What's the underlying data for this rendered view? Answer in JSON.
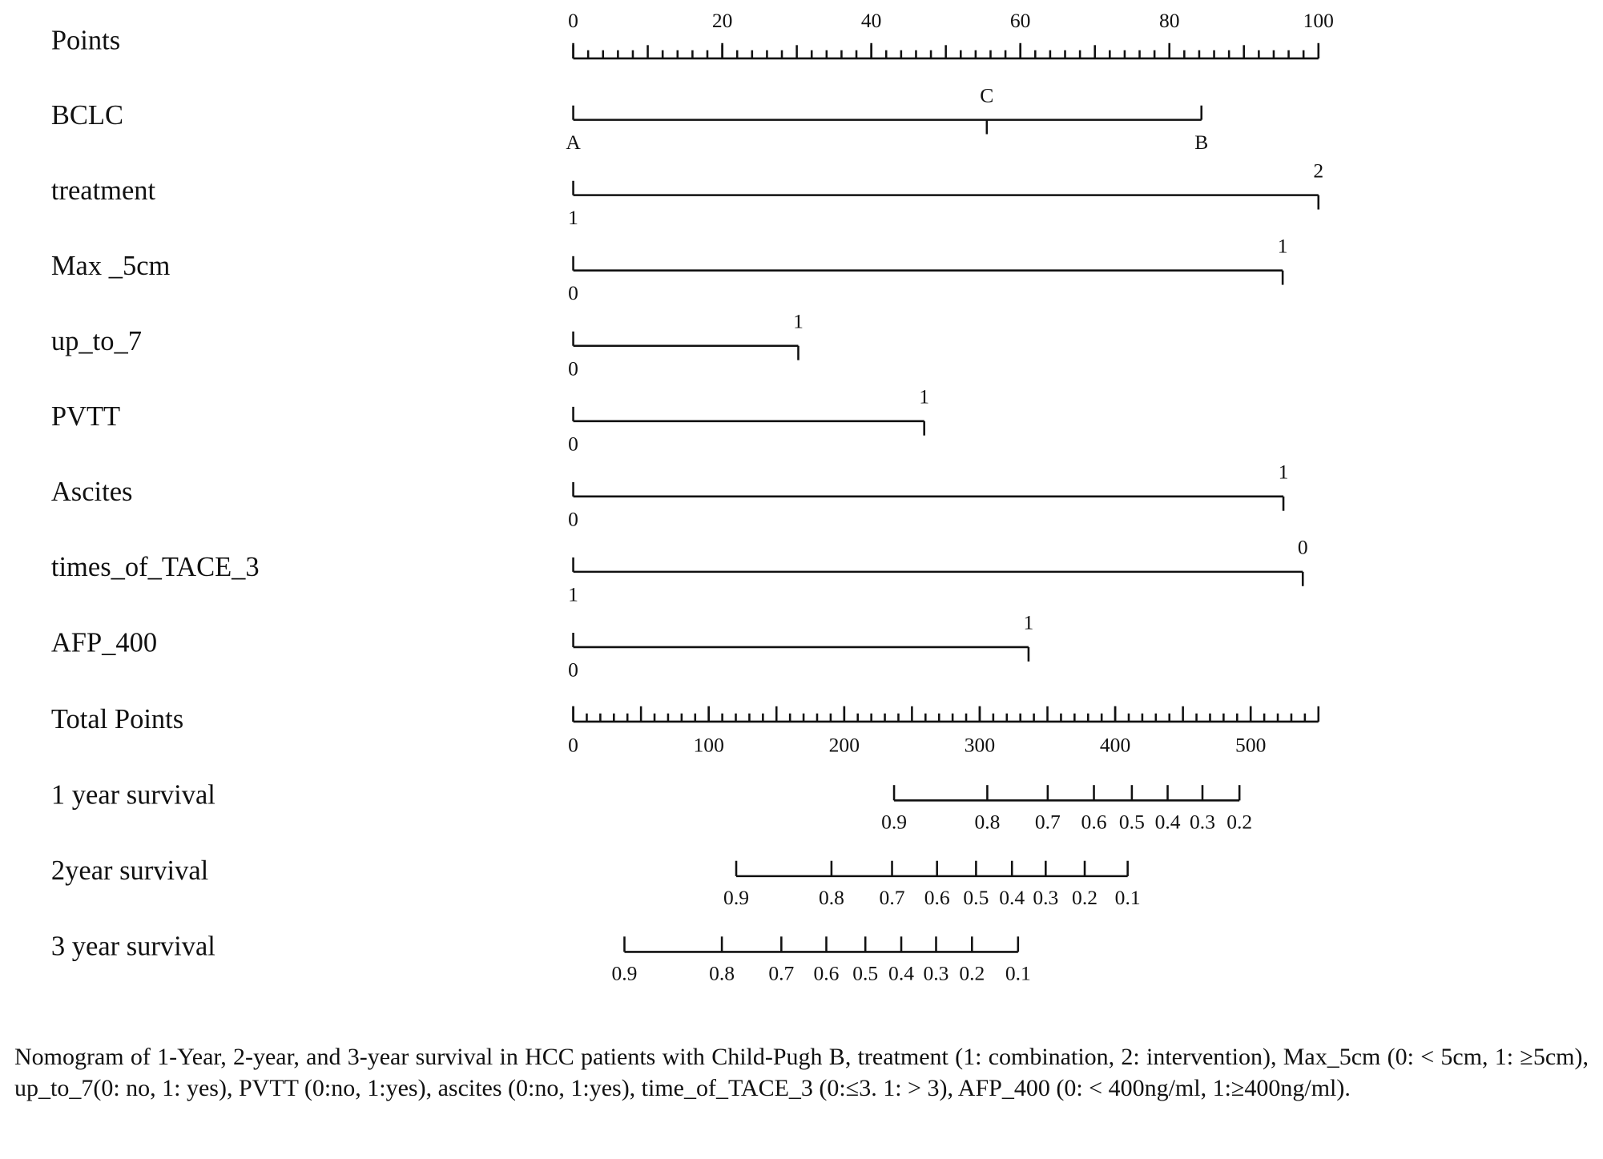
{
  "chart_data": {
    "type": "nomogram",
    "points_axis": {
      "label": "Points",
      "xlim": [
        0,
        100
      ],
      "xticks": [
        0,
        20,
        40,
        60,
        80,
        100
      ],
      "minor_ticks": [
        0,
        2,
        4,
        6,
        8,
        10,
        12,
        14,
        16,
        18,
        20,
        22,
        24,
        26,
        28,
        30,
        32,
        34,
        36,
        38,
        40,
        42,
        44,
        46,
        48,
        50,
        52,
        54,
        56,
        58,
        60,
        62,
        64,
        66,
        68,
        70,
        72,
        74,
        76,
        78,
        80,
        82,
        84,
        86,
        88,
        90,
        92,
        94,
        96,
        98,
        100
      ]
    },
    "variables": [
      {
        "label": "BCLC",
        "levels": [
          "A",
          "C",
          "B"
        ],
        "values": [
          0,
          55.5,
          84.3
        ]
      },
      {
        "label": "treatment",
        "levels": [
          "1",
          "2"
        ],
        "values": [
          0,
          100
        ]
      },
      {
        "label": "Max _5cm",
        "levels": [
          "0",
          "1"
        ],
        "values": [
          0,
          95.2
        ]
      },
      {
        "label": "up_to_7",
        "levels": [
          "0",
          "1"
        ],
        "values": [
          0,
          30.2
        ]
      },
      {
        "label": "PVTT",
        "levels": [
          "0",
          "1"
        ],
        "values": [
          0,
          47.1
        ]
      },
      {
        "label": "Ascites",
        "levels": [
          "0",
          "1"
        ],
        "values": [
          0,
          95.3
        ]
      },
      {
        "label": "times_of_TACE_3",
        "levels": [
          "1",
          "0"
        ],
        "values": [
          0,
          97.9
        ]
      },
      {
        "label": "AFP_400",
        "levels": [
          "0",
          "1"
        ],
        "values": [
          0,
          61.1
        ]
      }
    ],
    "total_axis": {
      "label": "Total Points",
      "xlim": [
        0,
        550
      ],
      "xticks": [
        0,
        100,
        200,
        300,
        400,
        500
      ],
      "minor_ticks": [
        0,
        10,
        20,
        30,
        40,
        50,
        60,
        70,
        80,
        90,
        100,
        110,
        120,
        130,
        140,
        150,
        160,
        170,
        180,
        190,
        200,
        210,
        220,
        230,
        240,
        250,
        260,
        270,
        280,
        290,
        300,
        310,
        320,
        330,
        340,
        350,
        360,
        370,
        380,
        390,
        400,
        410,
        420,
        430,
        440,
        450,
        460,
        470,
        480,
        490,
        500,
        510,
        520,
        530,
        540,
        550
      ]
    },
    "survival": [
      {
        "label": "1 year survival",
        "probabilities": [
          0.9,
          0.8,
          0.7,
          0.6,
          0.5,
          0.4,
          0.3,
          0.2
        ],
        "total_points": [
          236.8,
          305.6,
          350.2,
          384.3,
          412.3,
          438.7,
          464.4,
          491.7
        ]
      },
      {
        "label": "2year survival",
        "probabilities": [
          0.9,
          0.8,
          0.7,
          0.6,
          0.5,
          0.4,
          0.3,
          0.2,
          0.1
        ],
        "total_points": [
          120.3,
          190.6,
          235.3,
          268.5,
          297.3,
          323.8,
          348.7,
          377.5,
          409.2
        ]
      },
      {
        "label": "3 year survival",
        "probabilities": [
          0.9,
          0.8,
          0.7,
          0.6,
          0.5,
          0.4,
          0.3,
          0.2,
          0.1
        ],
        "total_points": [
          37.8,
          109.7,
          153.6,
          186.8,
          215.6,
          242.1,
          267.8,
          294.3,
          328.3
        ]
      }
    ],
    "caption": "Nomogram of 1-Year, 2-year, and 3-year survival in HCC patients with Child-Pugh B, treatment (1: combination, 2: intervention), Max_5cm (0: < 5cm, 1: ≥5cm), up_to_7(0: no, 1: yes), PVTT (0:no, 1:yes), ascites (0:no, 1:yes), time_of_TACE_3 (0:≤3. 1: > 3), AFP_400 (0: < 400ng/ml, 1:≥400ng/ml)."
  }
}
